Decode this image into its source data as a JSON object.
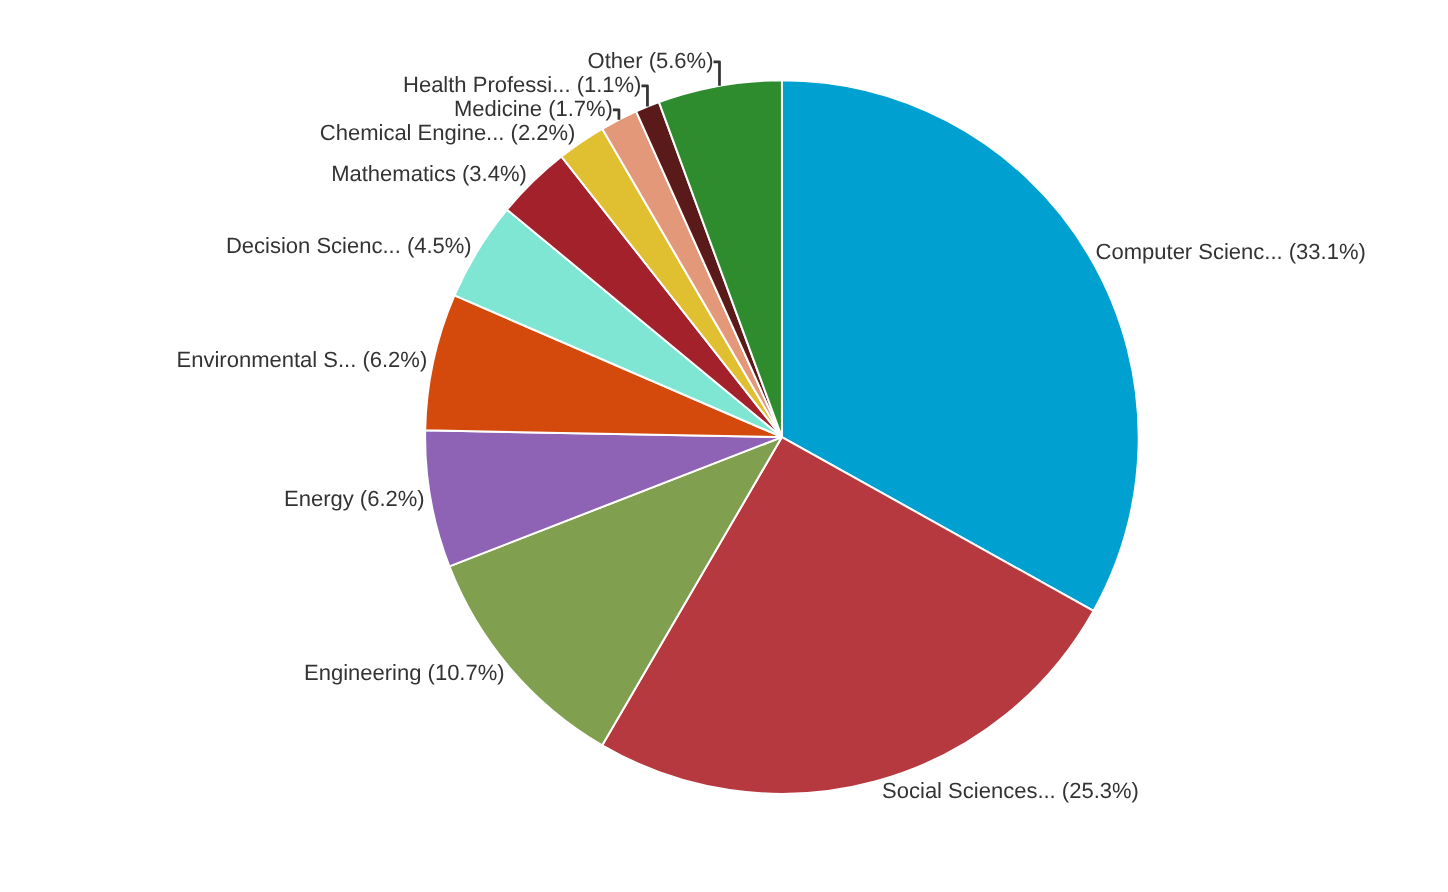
{
  "chart_data": {
    "type": "pie",
    "categories": [
      "Computer Scienc...",
      "Social Sciences...",
      "Engineering",
      "Energy",
      "Environmental S...",
      "Decision Scienc...",
      "Mathematics",
      "Chemical Engine...",
      "Medicine",
      "Health Professi...",
      "Other"
    ],
    "values": [
      33.1,
      25.3,
      10.7,
      6.2,
      6.2,
      4.5,
      3.4,
      2.2,
      1.7,
      1.1,
      5.6
    ],
    "value_labels": [
      "(33.1%)",
      "(25.3%)",
      "(10.7%)",
      "(6.2%)",
      "(6.2%)",
      "(4.5%)",
      "(3.4%)",
      "(2.2%)",
      "(1.7%)",
      "(1.1%)",
      "(5.6%)"
    ],
    "colors": [
      "#00a0d0",
      "#b5393e",
      "#80a050",
      "#8e62b5",
      "#d44a0c",
      "#80e6d4",
      "#a3212b",
      "#e0c030",
      "#e4987a",
      "#5a1a1a",
      "#2e8b2e"
    ],
    "legend": false
  }
}
